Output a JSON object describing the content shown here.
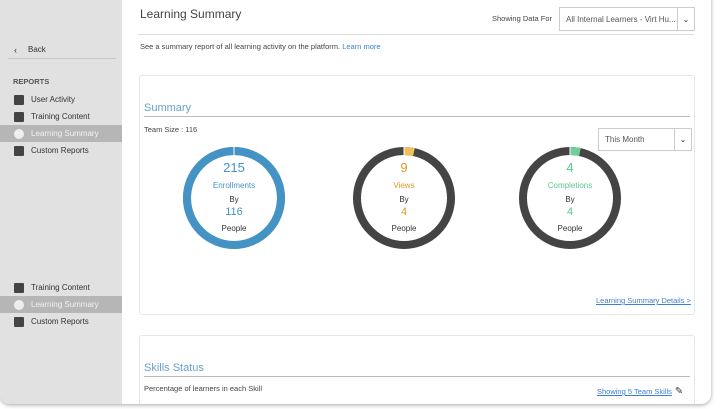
{
  "sidebar": {
    "back": "Back",
    "section": "REPORTS",
    "items": [
      {
        "label": "User Activity",
        "icon": "user-activity-icon"
      },
      {
        "label": "Training Content",
        "icon": "training-content-icon"
      },
      {
        "label": "Learning Summary",
        "icon": "learning-summary-icon",
        "active": true
      },
      {
        "label": "Custom Reports",
        "icon": "custom-reports-icon"
      }
    ],
    "duplicate_items": [
      {
        "label": "Training Content"
      },
      {
        "label": "Learning Summary",
        "active": true
      },
      {
        "label": "Custom Reports"
      }
    ]
  },
  "header": {
    "title": "Learning Summary",
    "showing_label": "Showing Data For",
    "filter_value": "All Internal Learners - Virt Hu...",
    "description": "See a summary report of all learning activity on the platform.",
    "learn_more": "Learn more"
  },
  "summary": {
    "title": "Summary",
    "team_size": "Team Size : 116",
    "period": "This Month",
    "details_link": "Learning Summary Details >",
    "rings": [
      {
        "count": "215",
        "label": "Enrollments",
        "by": "By",
        "people_count": "116",
        "people": "People",
        "color": "#4593c4",
        "fraction": 1.0
      },
      {
        "count": "9",
        "label": "Views",
        "by": "By",
        "people_count": "4",
        "people": "People",
        "color": "#f2c05a",
        "text_color": "#e09a1e",
        "fraction": 0.034
      },
      {
        "count": "4",
        "label": "Completions",
        "by": "By",
        "people_count": "4",
        "people": "People",
        "color": "#6fcf97",
        "text_color": "#5cc690",
        "fraction": 0.034
      }
    ],
    "track_color": "#444444"
  },
  "skills": {
    "title": "Skills Status",
    "subtitle": "Percentage of learners in each Skill",
    "link": "Showing 5 Team Skills"
  }
}
